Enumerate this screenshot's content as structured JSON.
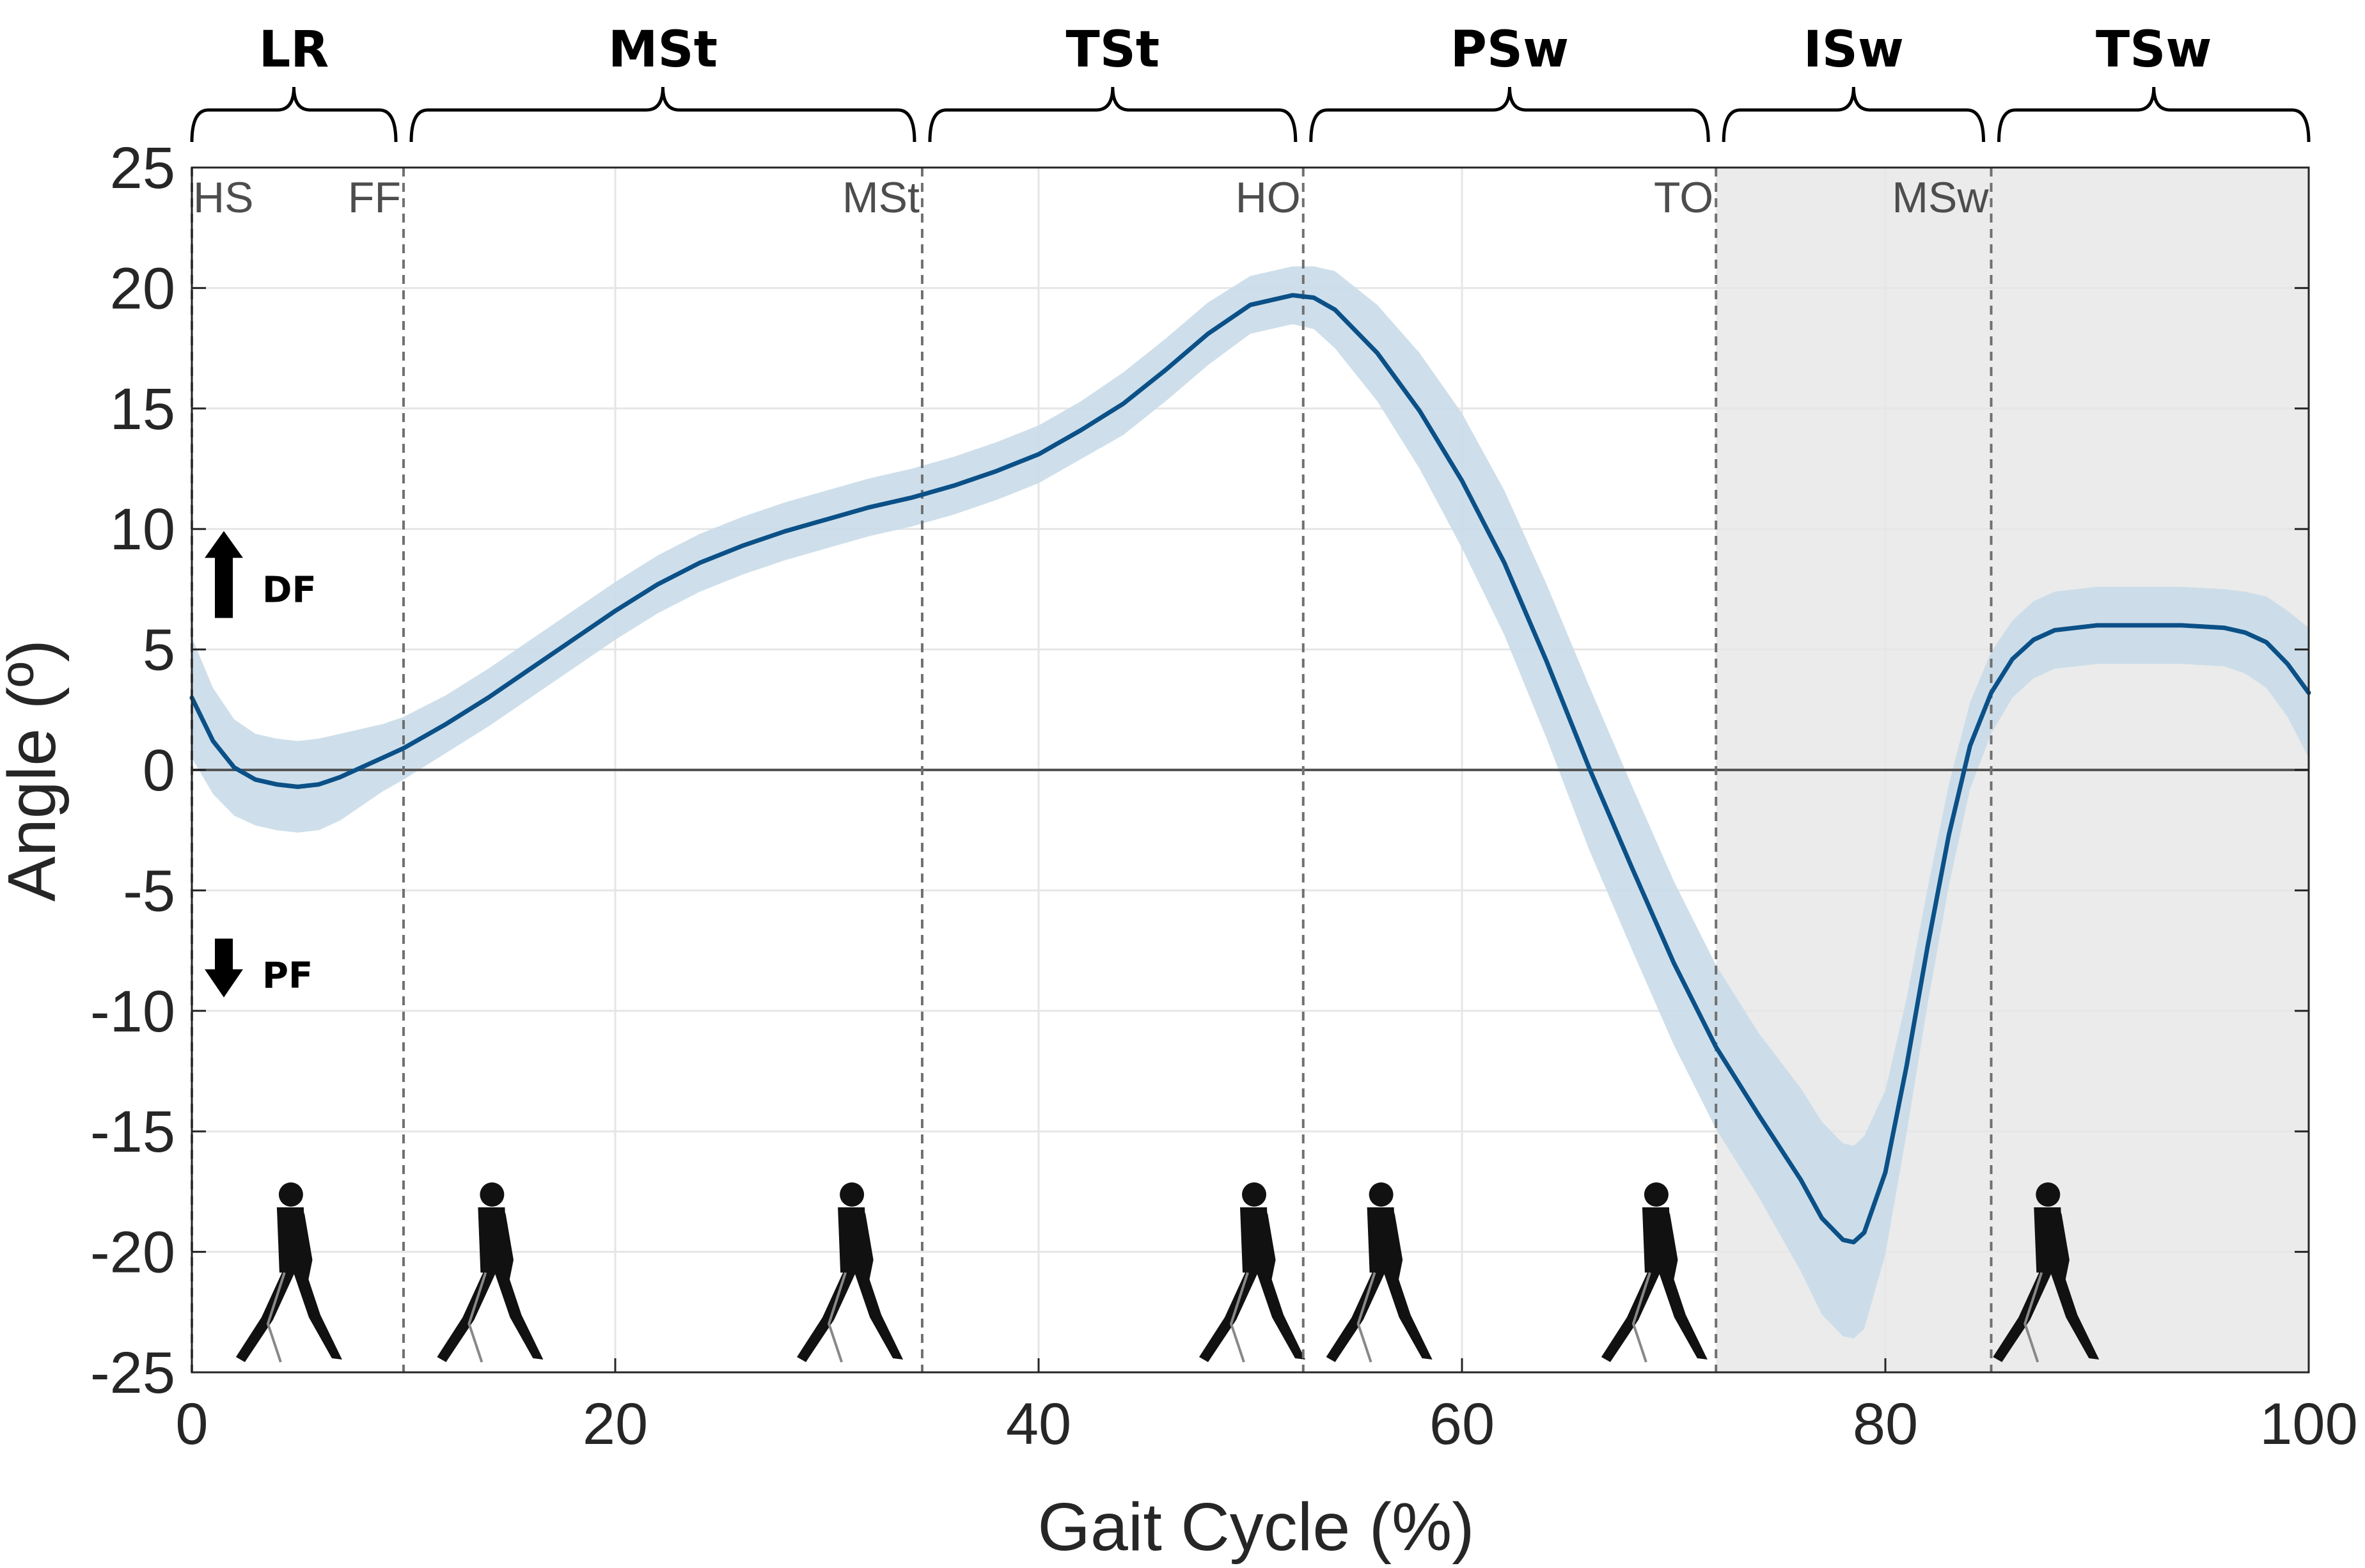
{
  "chart_data": {
    "type": "line",
    "title": "",
    "xlabel": "Gait Cycle (%)",
    "ylabel": "Angle (º)",
    "xlim": [
      0,
      100
    ],
    "ylim": [
      -25,
      25
    ],
    "xticks": [
      0,
      20,
      40,
      60,
      80,
      100
    ],
    "yticks": [
      25,
      20,
      15,
      10,
      5,
      0,
      -5,
      -10,
      -15,
      -20,
      -25
    ],
    "grid": true,
    "zero_line": true,
    "colors": {
      "line": "#0b5087",
      "band": "#c9dce9",
      "swing_shade": "#ebebeb",
      "grid": "#e6e6e6",
      "event_line": "#707070"
    },
    "series": [
      {
        "x": [
          0,
          1,
          2,
          3,
          4,
          5,
          6,
          7,
          8,
          9,
          10,
          12,
          14,
          16,
          18,
          20,
          22,
          24,
          26,
          28,
          30,
          32,
          34,
          36,
          38,
          40,
          42,
          44,
          46,
          48,
          50,
          52,
          53,
          54,
          56,
          58,
          60,
          62,
          64,
          66,
          68,
          70,
          72,
          74,
          76,
          77,
          78,
          78.5,
          79,
          80,
          81,
          82,
          83,
          84,
          85,
          86,
          87,
          88,
          89,
          90,
          92,
          94,
          96,
          97,
          98,
          99,
          100
        ],
        "mean": [
          3.0,
          1.2,
          0.1,
          -0.4,
          -0.6,
          -0.7,
          -0.6,
          -0.3,
          0.1,
          0.5,
          0.9,
          1.9,
          3.0,
          4.2,
          5.4,
          6.6,
          7.7,
          8.6,
          9.3,
          9.9,
          10.4,
          10.9,
          11.3,
          11.8,
          12.4,
          13.1,
          14.1,
          15.2,
          16.6,
          18.1,
          19.3,
          19.7,
          19.6,
          19.1,
          17.3,
          14.9,
          12.0,
          8.6,
          4.5,
          0.1,
          -4.0,
          -8.0,
          -11.5,
          -14.3,
          -17.0,
          -18.6,
          -19.5,
          -19.6,
          -19.2,
          -16.7,
          -12.3,
          -7.3,
          -2.7,
          1.0,
          3.2,
          4.6,
          5.4,
          5.8,
          5.9,
          6.0,
          6.0,
          6.0,
          5.9,
          5.7,
          5.3,
          4.4,
          3.2
        ],
        "std": [
          2.5,
          2.2,
          2.0,
          1.9,
          1.9,
          1.9,
          1.9,
          1.8,
          1.6,
          1.4,
          1.3,
          1.2,
          1.2,
          1.2,
          1.2,
          1.2,
          1.2,
          1.2,
          1.2,
          1.2,
          1.2,
          1.2,
          1.2,
          1.2,
          1.2,
          1.2,
          1.2,
          1.3,
          1.3,
          1.3,
          1.2,
          1.2,
          1.3,
          1.6,
          2.0,
          2.4,
          2.8,
          3.0,
          3.2,
          3.4,
          3.4,
          3.4,
          3.4,
          3.4,
          3.8,
          4.0,
          4.0,
          4.0,
          4.0,
          3.4,
          2.8,
          2.4,
          2.1,
          1.8,
          1.7,
          1.6,
          1.6,
          1.6,
          1.6,
          1.6,
          1.6,
          1.6,
          1.6,
          1.7,
          1.9,
          2.2,
          2.7
        ]
      }
    ],
    "phases": [
      {
        "label": "LR",
        "start": 0,
        "end": 10
      },
      {
        "label": "MSt",
        "start": 10,
        "end": 34.5
      },
      {
        "label": "TSt",
        "start": 34.5,
        "end": 52.5
      },
      {
        "label": "PSw",
        "start": 52.5,
        "end": 72
      },
      {
        "label": "ISw",
        "start": 72,
        "end": 85
      },
      {
        "label": "TSw",
        "start": 85,
        "end": 100
      }
    ],
    "events": [
      {
        "label": "HS",
        "x": 0
      },
      {
        "label": "FF",
        "x": 10
      },
      {
        "label": "MSt",
        "x": 34.5
      },
      {
        "label": "HO",
        "x": 52.5
      },
      {
        "label": "TO",
        "x": 72
      },
      {
        "label": "MSw",
        "x": 85
      }
    ],
    "swing_region": [
      72,
      100
    ],
    "direction_labels": {
      "up": "DF",
      "down": "PF"
    },
    "walker_positions": [
      4.5,
      14,
      31,
      50,
      56,
      69,
      87.5
    ]
  }
}
